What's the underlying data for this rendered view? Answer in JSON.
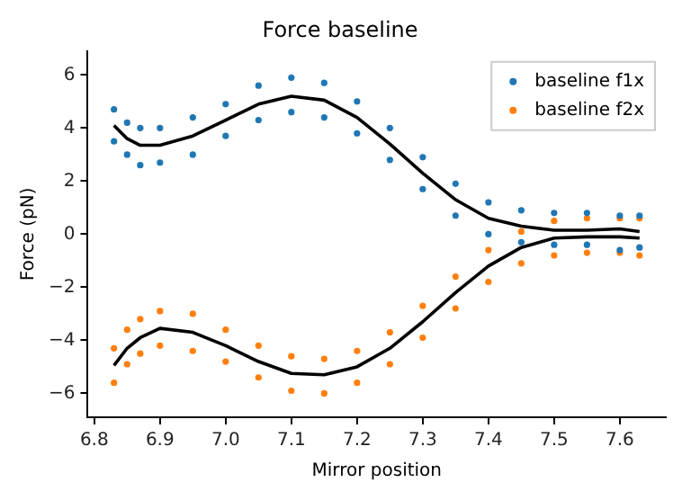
{
  "chart_data": {
    "type": "scatter",
    "title": "Force baseline",
    "xlabel": "Mirror position",
    "ylabel": "Force (pN)",
    "xlim": [
      6.79,
      7.67
    ],
    "ylim": [
      -6.9,
      6.9
    ],
    "xticks": [
      6.8,
      6.9,
      {
        "value": 7,
        "label": "7.0"
      },
      7.1,
      7.2,
      7.3,
      7.4,
      7.5,
      7.6
    ],
    "yticks": [
      {
        "value": -6,
        "label": "−6"
      },
      {
        "value": -4,
        "label": "−4"
      },
      {
        "value": -2,
        "label": "−2"
      },
      0,
      2,
      4,
      6
    ],
    "grid": false,
    "legend": "top right",
    "marker": "circle",
    "series": [
      {
        "name": "baseline f1x",
        "color": "#1f77b4",
        "x": [
          6.83,
          6.85,
          6.87,
          6.9,
          6.95,
          7.0,
          7.05,
          7.1,
          7.15,
          7.2,
          7.25,
          7.3,
          7.35,
          7.4,
          7.45,
          7.5,
          7.55,
          7.6,
          7.63,
          6.83,
          6.85,
          6.87,
          6.9,
          6.95,
          7.0,
          7.05,
          7.1,
          7.15,
          7.2,
          7.25,
          7.3,
          7.35,
          7.4,
          7.45,
          7.5,
          7.55,
          7.6,
          7.63
        ],
        "values": [
          4.7,
          4.2,
          4.0,
          4.0,
          4.4,
          4.9,
          5.6,
          5.9,
          5.7,
          5.0,
          4.0,
          2.9,
          1.9,
          1.2,
          0.9,
          0.8,
          0.8,
          0.7,
          0.7,
          3.5,
          3.0,
          2.6,
          2.7,
          3.0,
          3.7,
          4.3,
          4.6,
          4.4,
          3.8,
          2.8,
          1.7,
          0.7,
          0.0,
          -0.3,
          -0.4,
          -0.4,
          -0.6,
          -0.5
        ]
      },
      {
        "name": "baseline f2x",
        "color": "#ff7f0e",
        "x": [
          6.83,
          6.85,
          6.87,
          6.9,
          6.95,
          7.0,
          7.05,
          7.1,
          7.15,
          7.2,
          7.25,
          7.3,
          7.35,
          7.4,
          7.45,
          7.5,
          7.55,
          7.6,
          7.63,
          6.83,
          6.85,
          6.87,
          6.9,
          6.95,
          7.0,
          7.05,
          7.1,
          7.15,
          7.2,
          7.25,
          7.3,
          7.35,
          7.4,
          7.45,
          7.5,
          7.55,
          7.6,
          7.63
        ],
        "values": [
          -4.3,
          -3.6,
          -3.2,
          -2.9,
          -3.0,
          -3.6,
          -4.2,
          -4.6,
          -4.7,
          -4.4,
          -3.7,
          -2.7,
          -1.6,
          -0.6,
          0.1,
          0.5,
          0.6,
          0.6,
          0.6,
          -5.6,
          -4.9,
          -4.5,
          -4.2,
          -4.4,
          -4.8,
          -5.4,
          -5.9,
          -6.0,
          -5.6,
          -4.9,
          -3.9,
          -2.8,
          -1.8,
          -1.1,
          -0.8,
          -0.7,
          -0.7,
          -0.8
        ]
      },
      {
        "type": "line",
        "color": "#000000",
        "marker": "none",
        "x": [
          6.83,
          6.85,
          6.87,
          6.9,
          6.95,
          7.0,
          7.05,
          7.1,
          7.15,
          7.2,
          7.25,
          7.3,
          7.35,
          7.4,
          7.45,
          7.5,
          7.55,
          7.6,
          7.63
        ],
        "values": [
          4.1,
          3.6,
          3.35,
          3.35,
          3.7,
          4.3,
          4.9,
          5.2,
          5.05,
          4.4,
          3.4,
          2.3,
          1.3,
          0.6,
          0.3,
          0.15,
          0.15,
          0.2,
          0.1
        ]
      },
      {
        "type": "line",
        "color": "#000000",
        "marker": "none",
        "x": [
          6.83,
          6.85,
          6.87,
          6.9,
          6.95,
          7.0,
          7.05,
          7.1,
          7.15,
          7.2,
          7.25,
          7.3,
          7.35,
          7.4,
          7.45,
          7.5,
          7.55,
          7.6,
          7.63
        ],
        "values": [
          -4.95,
          -4.3,
          -3.9,
          -3.55,
          -3.7,
          -4.2,
          -4.8,
          -5.25,
          -5.3,
          -5.0,
          -4.3,
          -3.3,
          -2.2,
          -1.2,
          -0.5,
          -0.15,
          -0.1,
          -0.1,
          -0.15
        ]
      }
    ]
  }
}
